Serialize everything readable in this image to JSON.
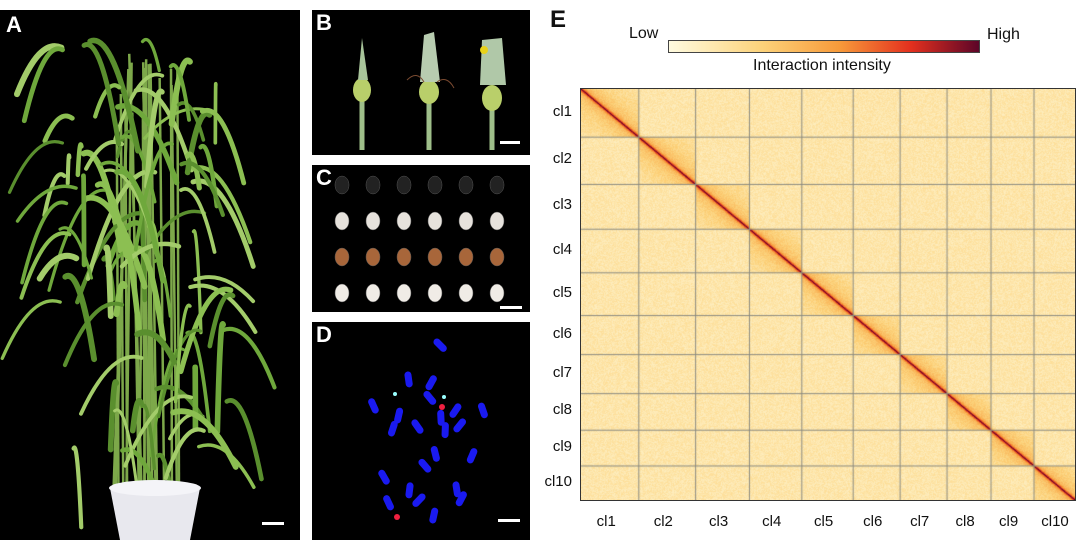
{
  "panels": {
    "A": {
      "label": "A"
    },
    "B": {
      "label": "B"
    },
    "C": {
      "label": "C"
    },
    "D": {
      "label": "D"
    },
    "E": {
      "label": "E"
    }
  },
  "colorbar": {
    "low": "Low",
    "high": "High",
    "title": "Interaction intensity",
    "colors": [
      "#fffbe0",
      "#fcd27a",
      "#f79a3a",
      "#e3301e",
      "#5c0528"
    ]
  },
  "chart_data": {
    "type": "heatmap",
    "title": "Interaction intensity",
    "chromosomes": [
      "cl1",
      "cl2",
      "cl3",
      "cl4",
      "cl5",
      "cl6",
      "cl7",
      "cl8",
      "cl9",
      "cl10"
    ],
    "relative_size_percent": [
      11.6,
      11.5,
      10.9,
      10.6,
      10.4,
      9.5,
      9.5,
      8.9,
      8.7,
      8.4
    ],
    "x_tick_labels": [
      "cl1",
      "cl2",
      "cl3",
      "cl4",
      "cl5",
      "cl6",
      "cl7",
      "cl8",
      "cl9",
      "cl10"
    ],
    "y_tick_labels": [
      "cl1",
      "cl2",
      "cl3",
      "cl4",
      "cl5",
      "cl6",
      "cl7",
      "cl8",
      "cl9",
      "cl10"
    ]
  }
}
